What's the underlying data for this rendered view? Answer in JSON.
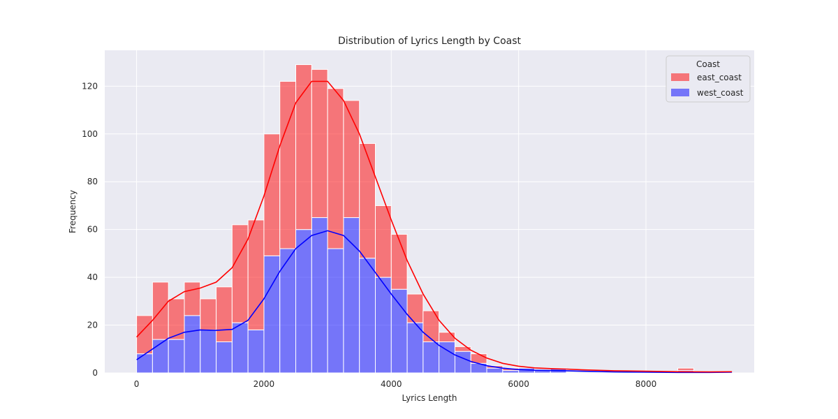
{
  "chart_data": {
    "type": "histogram",
    "title": "Distribution of Lyrics Length by Coast",
    "xlabel": "Lyrics Length",
    "ylabel": "Frequency",
    "xlim": [
      -500,
      9700
    ],
    "ylim": [
      0,
      135
    ],
    "xticks": [
      0,
      2000,
      4000,
      6000,
      8000
    ],
    "yticks": [
      0,
      20,
      40,
      60,
      80,
      100,
      120
    ],
    "grid": true,
    "legend": {
      "title": "Coast",
      "placement": "top-right"
    },
    "bin_start": 0,
    "bin_width": 250,
    "stacked": true,
    "series": [
      {
        "name": "west_coast",
        "color": "#0000ff",
        "counts": [
          8,
          14,
          14,
          24,
          18,
          13,
          21,
          18,
          49,
          52,
          60,
          65,
          52,
          65,
          48,
          40,
          35,
          21,
          13,
          13,
          9,
          4,
          2,
          1,
          2,
          1,
          2,
          0,
          0,
          0,
          0,
          0,
          0,
          0,
          1
        ],
        "kde": [
          [
            0,
            5.5
          ],
          [
            250,
            10
          ],
          [
            500,
            14.5
          ],
          [
            750,
            17
          ],
          [
            1000,
            18
          ],
          [
            1250,
            17.8
          ],
          [
            1500,
            18.2
          ],
          [
            1750,
            22
          ],
          [
            2000,
            31
          ],
          [
            2250,
            42.5
          ],
          [
            2500,
            52
          ],
          [
            2750,
            57.5
          ],
          [
            3000,
            59.5
          ],
          [
            3250,
            57.5
          ],
          [
            3500,
            51
          ],
          [
            3750,
            42
          ],
          [
            4000,
            33
          ],
          [
            4250,
            24.5
          ],
          [
            4500,
            17
          ],
          [
            4750,
            11.5
          ],
          [
            5000,
            7.5
          ],
          [
            5250,
            4.8
          ],
          [
            5500,
            3
          ],
          [
            5750,
            2
          ],
          [
            6000,
            1.4
          ],
          [
            6250,
            1.1
          ],
          [
            6500,
            1
          ],
          [
            6750,
            0.9
          ],
          [
            7000,
            0.7
          ],
          [
            7500,
            0.4
          ],
          [
            8000,
            0.3
          ],
          [
            8500,
            0.2
          ],
          [
            9000,
            0.2
          ],
          [
            9350,
            0.3
          ]
        ]
      },
      {
        "name": "east_coast",
        "color": "#ff0000",
        "counts": [
          16,
          24,
          17,
          14,
          13,
          23,
          41,
          46,
          51,
          70,
          69,
          62,
          67,
          49,
          48,
          30,
          23,
          12,
          13,
          4,
          2,
          4,
          1,
          1,
          0,
          0,
          0,
          0,
          0,
          0,
          0,
          0,
          0,
          0,
          1
        ],
        "kde": [
          [
            0,
            15
          ],
          [
            250,
            22
          ],
          [
            500,
            30
          ],
          [
            750,
            34
          ],
          [
            1000,
            35.5
          ],
          [
            1250,
            38
          ],
          [
            1500,
            44
          ],
          [
            1750,
            56
          ],
          [
            2000,
            74
          ],
          [
            2250,
            95
          ],
          [
            2500,
            113
          ],
          [
            2750,
            122
          ],
          [
            3000,
            122
          ],
          [
            3250,
            114
          ],
          [
            3500,
            100
          ],
          [
            3750,
            82
          ],
          [
            4000,
            64
          ],
          [
            4250,
            47
          ],
          [
            4500,
            33
          ],
          [
            4750,
            22
          ],
          [
            5000,
            14.5
          ],
          [
            5250,
            9.5
          ],
          [
            5500,
            6.2
          ],
          [
            5750,
            4
          ],
          [
            6000,
            2.8
          ],
          [
            6250,
            2.1
          ],
          [
            6500,
            1.8
          ],
          [
            6750,
            1.6
          ],
          [
            7000,
            1.3
          ],
          [
            7500,
            0.9
          ],
          [
            8000,
            0.7
          ],
          [
            8500,
            0.5
          ],
          [
            9000,
            0.4
          ],
          [
            9350,
            0.5
          ]
        ]
      }
    ]
  }
}
